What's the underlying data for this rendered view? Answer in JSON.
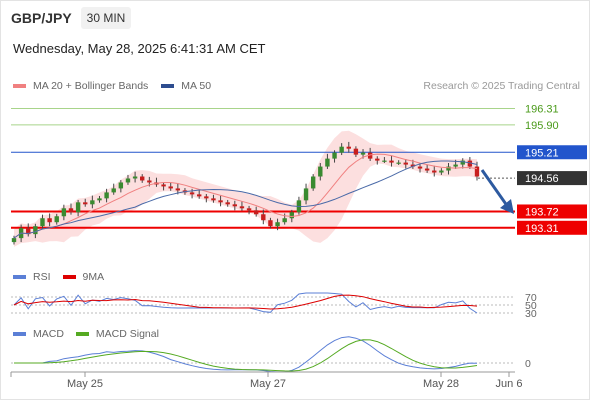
{
  "header": {
    "symbol": "GBP/JPY",
    "timeframe": "30 MIN",
    "datetime": "Wednesday, May 28, 2025 6:41:31 AM CET"
  },
  "legend": {
    "main": [
      {
        "label": "MA 20 + Bollinger Bands",
        "color": "#f08080"
      },
      {
        "label": "MA 50",
        "color": "#2e4d8f"
      }
    ],
    "rsi": [
      {
        "label": "RSI",
        "color": "#5b7fd6"
      },
      {
        "label": "9MA",
        "color": "#dd0000"
      }
    ],
    "macd": [
      {
        "label": "MACD",
        "color": "#5b7fd6"
      },
      {
        "label": "MACD Signal",
        "color": "#55aa22"
      }
    ]
  },
  "copyright": "Research © 2025 Trading Central",
  "chart_data": {
    "type": "candlestick",
    "y_range": [
      192.6,
      196.6
    ],
    "x_labels": [
      "May 25",
      "May 27",
      "May 28",
      "Jun 6"
    ],
    "levels": [
      {
        "label": "196.31",
        "value": 196.31,
        "kind": "resistance",
        "color": "#4a9a1a"
      },
      {
        "label": "195.90",
        "value": 195.9,
        "kind": "resistance",
        "color": "#4a9a1a"
      },
      {
        "label": "195.21",
        "value": 195.21,
        "kind": "pivot",
        "color": "#2255cc"
      },
      {
        "label": "194.56",
        "value": 194.56,
        "kind": "last-price",
        "color": "#333333"
      },
      {
        "label": "193.72",
        "value": 193.72,
        "kind": "support",
        "color": "#ee0000"
      },
      {
        "label": "193.31",
        "value": 193.31,
        "kind": "support",
        "color": "#ee0000"
      }
    ],
    "closes": [
      193.05,
      193.3,
      193.15,
      193.35,
      193.55,
      193.45,
      193.6,
      193.8,
      193.7,
      193.95,
      193.9,
      194.0,
      194.05,
      194.2,
      194.3,
      194.45,
      194.55,
      194.6,
      194.5,
      194.45,
      194.4,
      194.35,
      194.3,
      194.25,
      194.2,
      194.15,
      194.1,
      194.05,
      194.0,
      193.95,
      193.9,
      193.85,
      193.8,
      193.75,
      193.65,
      193.5,
      193.35,
      193.45,
      193.55,
      193.7,
      194.0,
      194.3,
      194.6,
      194.85,
      195.05,
      195.2,
      195.35,
      195.3,
      195.15,
      195.2,
      195.05,
      195.0,
      195.0,
      194.95,
      194.95,
      194.9,
      194.85,
      194.8,
      194.75,
      194.7,
      194.75,
      194.85,
      194.9,
      195.0,
      194.85,
      194.6
    ],
    "rsi": {
      "levels": [
        70,
        50,
        30
      ]
    },
    "macd": {
      "levels": [
        0
      ]
    }
  }
}
